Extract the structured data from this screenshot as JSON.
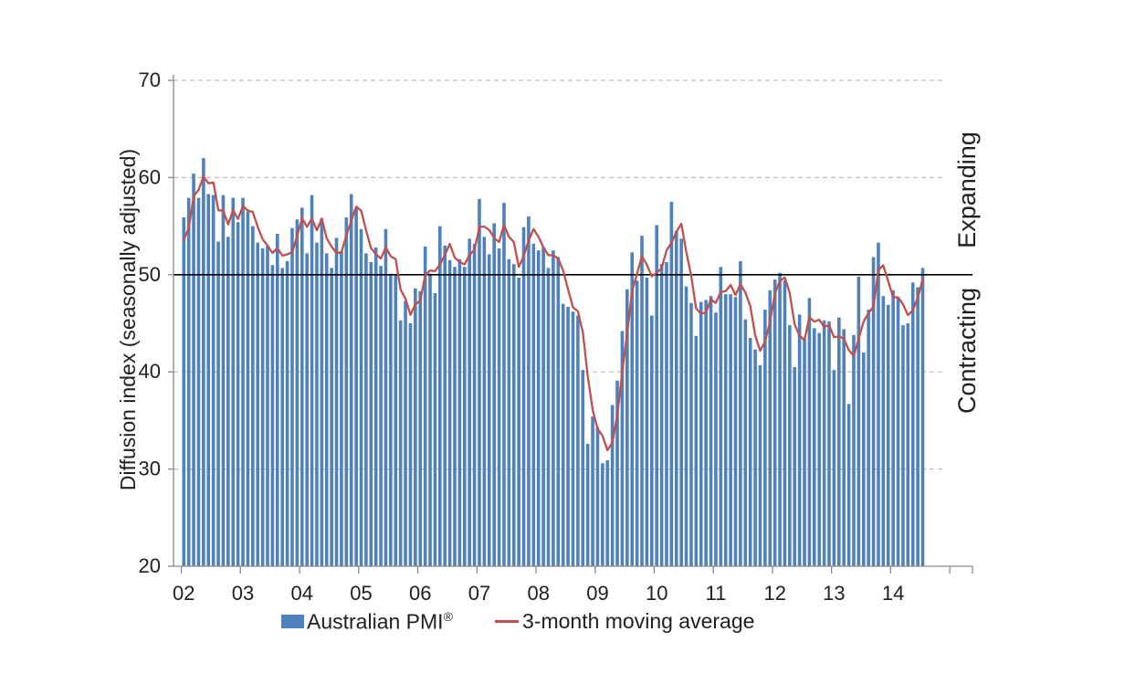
{
  "chart_data": {
    "type": "bar",
    "title": "",
    "ylabel": "Diffusion index (seasonally adjusted)",
    "ylim": [
      20,
      70
    ],
    "yticks": [
      20,
      30,
      40,
      50,
      60,
      70
    ],
    "gridline_values": [
      70,
      60,
      40,
      30
    ],
    "grid": "dashed-horizontal",
    "xticklabels": [
      "02",
      "03",
      "04",
      "05",
      "06",
      "07",
      "08",
      "09",
      "10",
      "11",
      "12",
      "13",
      "14"
    ],
    "start_year": 2002,
    "start_month": 1,
    "reference_line": {
      "value": 50,
      "color": "#000000"
    },
    "region_labels": {
      "above": "Expanding",
      "below": "Contracting"
    },
    "legend_position": "bottom",
    "series": [
      {
        "name": "Australian PMI®",
        "type": "bar",
        "color": "#4F81BD",
        "bars_by_year": [
          {
            "year": 2002,
            "values": [
              55.9,
              57.9,
              60.4,
              57.9,
              62.0,
              58.3,
              58.2,
              53.4,
              58.2,
              53.9,
              57.9,
              55.4
            ]
          },
          {
            "year": 2003,
            "values": [
              57.9,
              56.5,
              55.0,
              53.3,
              52.7,
              53.0,
              51.0,
              54.2,
              50.7,
              51.4,
              54.8,
              55.7
            ]
          },
          {
            "year": 2004,
            "values": [
              56.9,
              52.2,
              58.2,
              53.3,
              55.8,
              52.2,
              50.7,
              53.8,
              52.4,
              55.9,
              58.3,
              56.8
            ]
          },
          {
            "year": 2005,
            "values": [
              54.7,
              52.2,
              51.3,
              52.8,
              50.9,
              54.7,
              50.1,
              50.0,
              45.3,
              47.3,
              45.0,
              48.6
            ]
          },
          {
            "year": 2006,
            "values": [
              48.3,
              52.9,
              50.1,
              48.1,
              55.0,
              53.0,
              51.5,
              50.8,
              51.6,
              50.8,
              53.7,
              53.2
            ]
          },
          {
            "year": 2007,
            "values": [
              57.8,
              53.9,
              52.1,
              55.3,
              52.7,
              57.4,
              51.6,
              51.1,
              49.7,
              54.9,
              56.0,
              53.2
            ]
          },
          {
            "year": 2008,
            "values": [
              52.5,
              52.8,
              50.7,
              52.5,
              51.8,
              47.0,
              46.7,
              46.2,
              45.8,
              40.2,
              32.6,
              35.4
            ]
          },
          {
            "year": 2009,
            "values": [
              34.3,
              30.6,
              30.9,
              36.6,
              39.1,
              44.2,
              48.5,
              52.3,
              49.4,
              54.0,
              49.7,
              45.8
            ]
          },
          {
            "year": 2010,
            "values": [
              55.1,
              51.1,
              51.3,
              57.5,
              54.5,
              53.7,
              48.8,
              47.1,
              43.7,
              47.2,
              47.4,
              47.8
            ]
          },
          {
            "year": 2011,
            "values": [
              46.1,
              50.8,
              48.0,
              48.0,
              47.7,
              51.4,
              45.4,
              43.5,
              42.3,
              40.7,
              46.4,
              48.4
            ]
          },
          {
            "year": 2012,
            "values": [
              49.5,
              50.2,
              49.4,
              44.8,
              40.5,
              45.9,
              43.4,
              47.6,
              44.5,
              44.0,
              45.3,
              45.2
            ]
          },
          {
            "year": 2013,
            "values": [
              40.2,
              45.6,
              44.4,
              36.7,
              43.8,
              49.8,
              42.0,
              46.4,
              51.8,
              53.3,
              47.8,
              46.9
            ]
          },
          {
            "year": 2014,
            "values": [
              48.4,
              47.7,
              44.8,
              45.0,
              49.2,
              48.7,
              50.7
            ]
          }
        ]
      },
      {
        "name": "3-month moving average",
        "type": "line",
        "color": "#C0504D",
        "window": 3,
        "computed_from": "Australian PMI®",
        "lead_in_values": [
          53.6,
          54.8
        ]
      }
    ]
  },
  "legend": {
    "items": [
      {
        "label": "Australian PMI",
        "suffix": "®"
      },
      {
        "label": "3-month moving average",
        "suffix": ""
      }
    ]
  },
  "colors": {
    "bar": "#4F81BD",
    "line": "#C0504D",
    "gridline": "#BFBFBF",
    "axis": "#898989",
    "reference_line": "#000000",
    "text": "#1F1F1F",
    "background": "#FFFFFF"
  }
}
